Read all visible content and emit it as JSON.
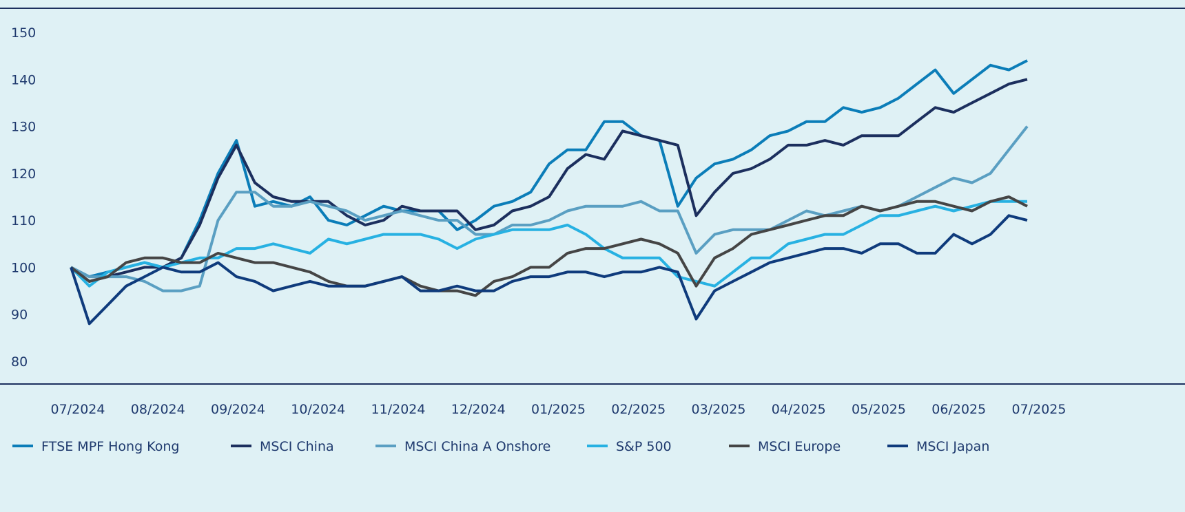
{
  "chart_data": {
    "type": "line",
    "title": "",
    "xlabel": "",
    "ylabel": "",
    "ylim": [
      80,
      150
    ],
    "yticks": [
      80,
      90,
      100,
      110,
      120,
      130,
      140,
      150
    ],
    "xtick_labels": [
      "07/2024",
      "08/2024",
      "09/2024",
      "10/2024",
      "11/2024",
      "12/2024",
      "01/2025",
      "02/2025",
      "03/2025",
      "04/2025",
      "05/2025",
      "06/2025",
      "07/2025"
    ],
    "grid": false,
    "legend_position": "bottom",
    "x": [
      "2024-06-28",
      "2024-07-05",
      "2024-07-12",
      "2024-07-19",
      "2024-07-26",
      "2024-08-02",
      "2024-08-09",
      "2024-08-16",
      "2024-08-23",
      "2024-08-30",
      "2024-09-06",
      "2024-09-13",
      "2024-09-20",
      "2024-09-27",
      "2024-10-04",
      "2024-10-11",
      "2024-10-18",
      "2024-10-25",
      "2024-11-01",
      "2024-11-08",
      "2024-11-15",
      "2024-11-22",
      "2024-11-29",
      "2024-12-06",
      "2024-12-13",
      "2024-12-20",
      "2024-12-27",
      "2025-01-03",
      "2025-01-10",
      "2025-01-17",
      "2025-01-24",
      "2025-01-31",
      "2025-02-07",
      "2025-02-14",
      "2025-02-21",
      "2025-02-28",
      "2025-03-07",
      "2025-03-14",
      "2025-03-21",
      "2025-03-28",
      "2025-04-04",
      "2025-04-11",
      "2025-04-18",
      "2025-04-25",
      "2025-05-02",
      "2025-05-09",
      "2025-05-16",
      "2025-05-23",
      "2025-05-30",
      "2025-06-06",
      "2025-06-13",
      "2025-06-20",
      "2025-06-27"
    ],
    "series": [
      {
        "name": "FTSE MPF Hong Kong",
        "color": "#0b7db8",
        "values": [
          100,
          98,
          99,
          100,
          101,
          100,
          102,
          110,
          120,
          127,
          113,
          114,
          113,
          115,
          110,
          109,
          111,
          113,
          112,
          112,
          112,
          108,
          110,
          113,
          114,
          116,
          122,
          125,
          125,
          131,
          131,
          128,
          127,
          113,
          119,
          122,
          123,
          125,
          128,
          129,
          131,
          131,
          134,
          133,
          134,
          136,
          139,
          142,
          137,
          140,
          143,
          142,
          144
        ]
      },
      {
        "name": "MSCI China",
        "color": "#1c2f5e",
        "values": [
          100,
          97,
          98,
          99,
          100,
          100,
          102,
          109,
          119,
          126,
          118,
          115,
          114,
          114,
          114,
          111,
          109,
          110,
          113,
          112,
          112,
          112,
          108,
          109,
          112,
          113,
          115,
          121,
          124,
          123,
          129,
          128,
          127,
          126,
          111,
          116,
          120,
          121,
          123,
          126,
          126,
          127,
          126,
          128,
          128,
          128,
          131,
          134,
          133,
          135,
          137,
          139,
          140
        ]
      },
      {
        "name": "MSCI China A Onshore",
        "color": "#5a9fc2",
        "values": [
          100,
          98,
          98,
          98,
          97,
          95,
          95,
          96,
          110,
          116,
          116,
          113,
          113,
          114,
          113,
          112,
          110,
          111,
          112,
          111,
          110,
          110,
          107,
          107,
          109,
          109,
          110,
          112,
          113,
          113,
          113,
          114,
          112,
          112,
          103,
          107,
          108,
          108,
          108,
          110,
          112,
          111,
          112,
          113,
          112,
          113,
          115,
          117,
          119,
          118,
          120,
          125,
          130
        ]
      },
      {
        "name": "S&P 500",
        "color": "#27b1e2",
        "values": [
          100,
          96,
          99,
          100,
          101,
          100,
          101,
          102,
          102,
          104,
          104,
          105,
          104,
          103,
          106,
          105,
          106,
          107,
          107,
          107,
          106,
          104,
          106,
          107,
          108,
          108,
          108,
          109,
          107,
          104,
          102,
          102,
          102,
          98,
          97,
          96,
          99,
          102,
          102,
          105,
          106,
          107,
          107,
          109,
          111,
          111,
          112,
          113,
          112,
          113,
          114,
          114,
          114
        ]
      },
      {
        "name": "MSCI Europe",
        "color": "#454545",
        "values": [
          100,
          97,
          98,
          101,
          102,
          102,
          101,
          101,
          103,
          102,
          101,
          101,
          100,
          99,
          97,
          96,
          96,
          97,
          98,
          96,
          95,
          95,
          94,
          97,
          98,
          100,
          100,
          103,
          104,
          104,
          105,
          106,
          105,
          103,
          96,
          102,
          104,
          107,
          108,
          109,
          110,
          111,
          111,
          113,
          112,
          113,
          114,
          114,
          113,
          112,
          114,
          115,
          113
        ]
      },
      {
        "name": "MSCI Japan",
        "color": "#0f3b7c",
        "values": [
          100,
          88,
          92,
          96,
          98,
          100,
          99,
          99,
          101,
          98,
          97,
          95,
          96,
          97,
          96,
          96,
          96,
          97,
          98,
          95,
          95,
          96,
          95,
          95,
          97,
          98,
          98,
          99,
          99,
          98,
          99,
          99,
          100,
          99,
          89,
          95,
          97,
          99,
          101,
          102,
          103,
          104,
          104,
          103,
          105,
          105,
          103,
          103,
          107,
          105,
          107,
          111,
          110
        ]
      }
    ]
  }
}
